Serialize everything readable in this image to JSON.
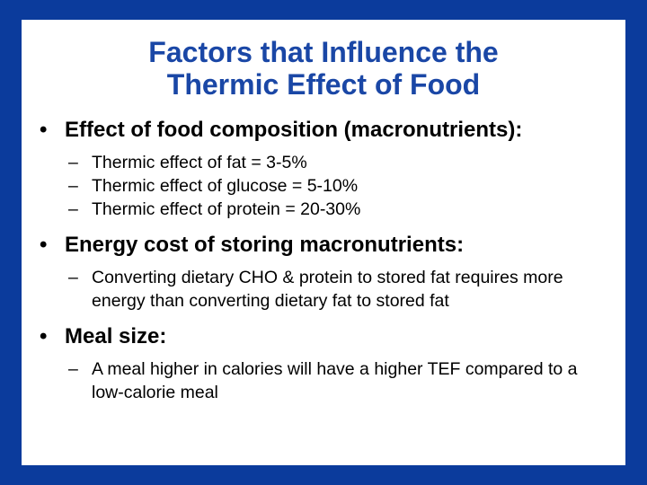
{
  "slide": {
    "title_line1": "Factors that Influence the",
    "title_line2": "Thermic Effect of Food",
    "bullet_symbol": "•",
    "dash_symbol": "–",
    "bullets": [
      {
        "text": "Effect of food composition (macronutrients):",
        "subs": [
          "Thermic effect of fat = 3-5%",
          "Thermic effect of glucose = 5-10%",
          "Thermic effect of protein = 20-30%"
        ]
      },
      {
        "text": "Energy cost of storing macronutrients:",
        "subs": [
          "Converting dietary CHO & protein to stored fat requires more energy than converting dietary fat to stored fat"
        ]
      },
      {
        "text": "Meal size:",
        "subs": [
          "A meal higher in calories will have a higher TEF compared to a low-calorie meal"
        ]
      }
    ]
  },
  "colors": {
    "border": "#0b3b9c",
    "title": "#1a47a6",
    "body_text": "#000000",
    "background": "#ffffff"
  }
}
